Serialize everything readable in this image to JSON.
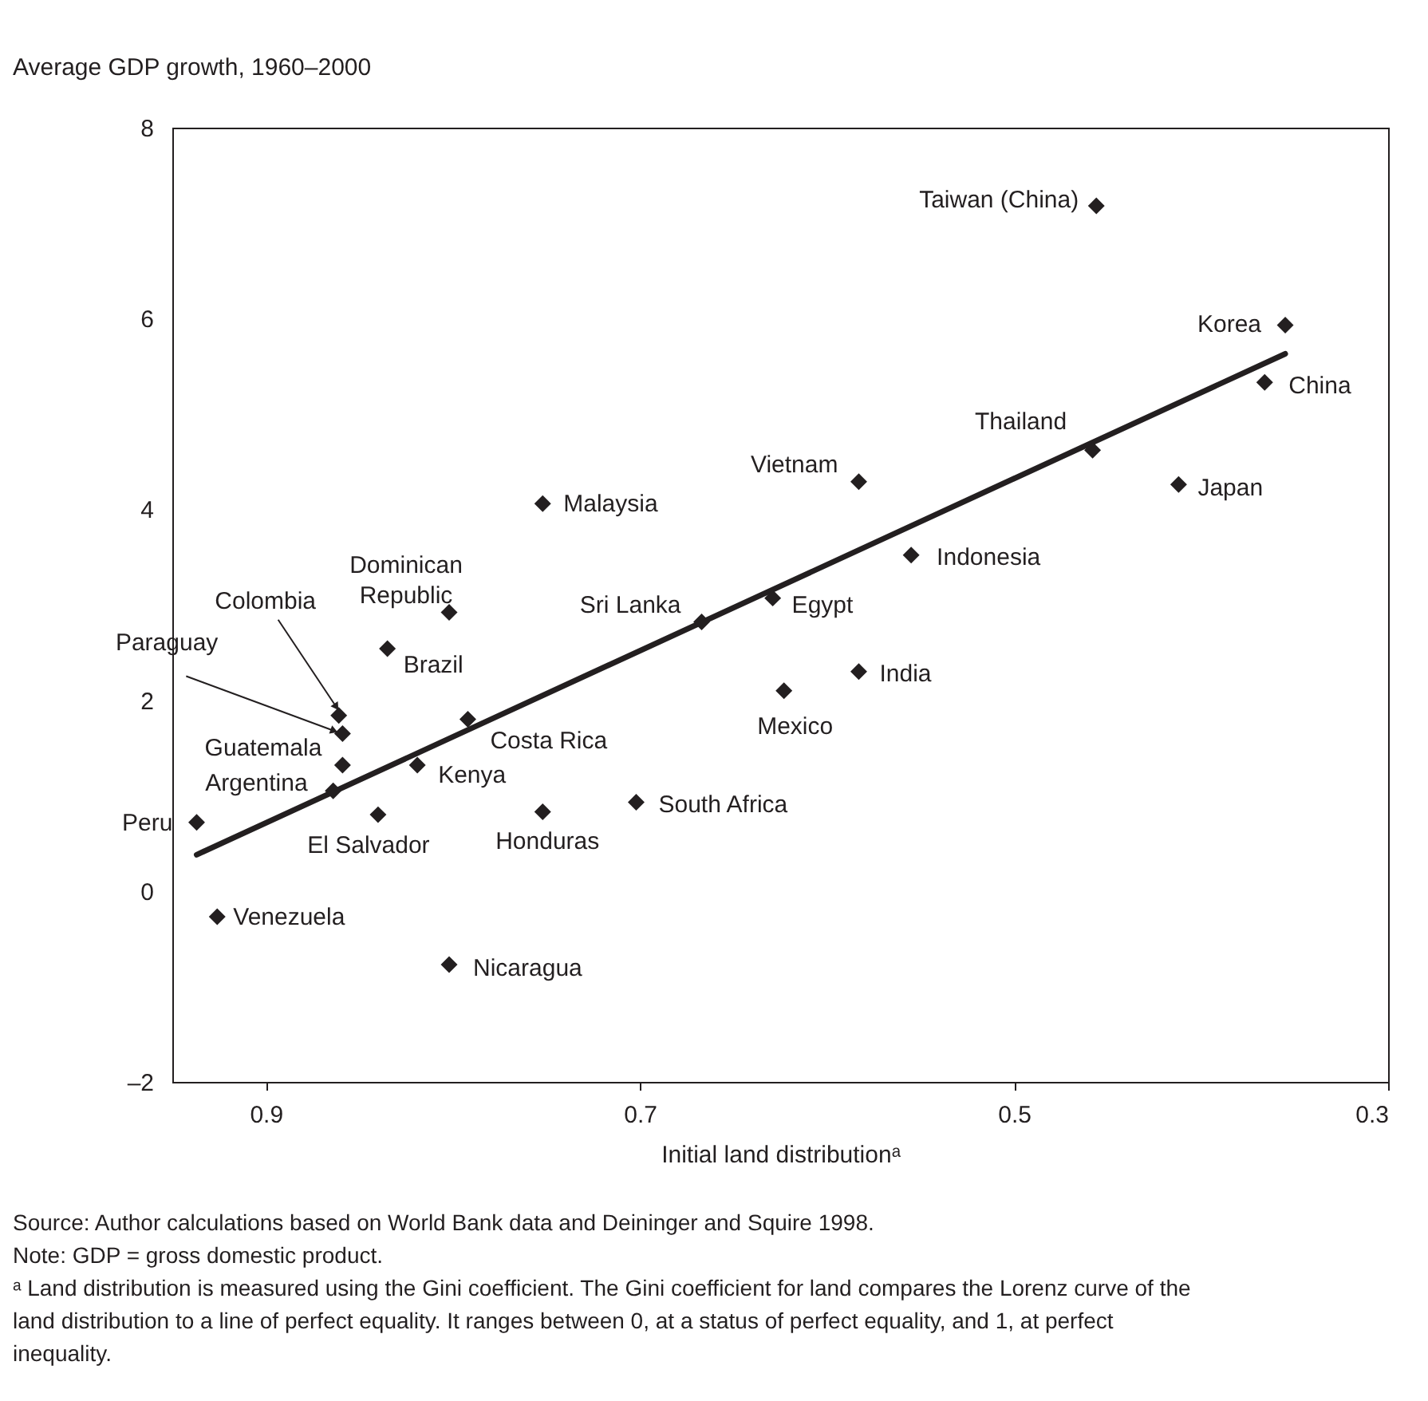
{
  "chart_data": {
    "type": "scatter",
    "ylabel": "Average GDP growth, 1960–2000",
    "xlabel": "Initial land distributionᵃ",
    "xlim": [
      0.95,
      0.3
    ],
    "xticks": [
      0.9,
      0.7,
      0.5,
      0.3
    ],
    "ylim": [
      -2,
      8
    ],
    "yticks": [
      {
        "value": -2,
        "label": "–2"
      },
      0,
      2,
      4,
      6,
      8
    ],
    "grid": false,
    "series": [
      {
        "color": "#231f20",
        "marker": "diamond",
        "x": [
          0.937,
          0.926,
          0.864,
          0.859,
          0.859,
          0.861,
          0.84,
          0.835,
          0.802,
          0.819,
          0.792,
          0.752,
          0.802,
          0.752,
          0.702,
          0.667,
          0.629,
          0.623,
          0.583,
          0.583,
          0.555,
          0.458,
          0.456,
          0.412,
          0.366,
          0.355
        ],
        "values": [
          0.72,
          -0.27,
          1.05,
          1.32,
          1.65,
          1.84,
          0.8,
          2.54,
          2.92,
          1.32,
          1.8,
          0.83,
          -0.77,
          4.06,
          0.93,
          2.82,
          3.07,
          2.1,
          2.3,
          4.29,
          3.52,
          4.62,
          7.18,
          4.26,
          5.33,
          5.93
        ]
      },
      {
        "type": "line",
        "color": "#231f20",
        "x": [
          0.937,
          0.355
        ],
        "values": [
          0.38,
          5.63
        ]
      }
    ],
    "annotations": [
      {
        "text": "Peru",
        "x": 0.937,
        "y": 0.72
      },
      {
        "text": "Venezuela",
        "x": 0.926,
        "y": -0.27
      },
      {
        "text": "Argentina",
        "x": 0.864,
        "y": 1.05
      },
      {
        "text": "Guatemala",
        "x": 0.859,
        "y": 1.32
      },
      {
        "text": "Paraguay",
        "x": 0.859,
        "y": 1.65
      },
      {
        "text": "Colombia",
        "x": 0.861,
        "y": 1.84
      },
      {
        "text": "El Salvador",
        "x": 0.84,
        "y": 0.8
      },
      {
        "text": "Brazil",
        "x": 0.835,
        "y": 2.54
      },
      {
        "text": "Dominican\nRepublic",
        "x": 0.802,
        "y": 2.92
      },
      {
        "text": "Kenya",
        "x": 0.819,
        "y": 1.32
      },
      {
        "text": "Costa Rica",
        "x": 0.792,
        "y": 1.8
      },
      {
        "text": "Honduras",
        "x": 0.752,
        "y": 0.83
      },
      {
        "text": "Nicaragua",
        "x": 0.802,
        "y": -0.77
      },
      {
        "text": "Malaysia",
        "x": 0.752,
        "y": 4.06
      },
      {
        "text": "South Africa",
        "x": 0.702,
        "y": 0.93
      },
      {
        "text": "Sri Lanka",
        "x": 0.667,
        "y": 2.82
      },
      {
        "text": "Egypt",
        "x": 0.629,
        "y": 3.07
      },
      {
        "text": "Mexico",
        "x": 0.623,
        "y": 2.1
      },
      {
        "text": "India",
        "x": 0.583,
        "y": 2.3
      },
      {
        "text": "Vietnam",
        "x": 0.583,
        "y": 4.29
      },
      {
        "text": "Indonesia",
        "x": 0.555,
        "y": 3.52
      },
      {
        "text": "Thailand",
        "x": 0.458,
        "y": 4.62
      },
      {
        "text": "Taiwan (China)",
        "x": 0.456,
        "y": 7.18
      },
      {
        "text": "Japan",
        "x": 0.412,
        "y": 4.26
      },
      {
        "text": "China",
        "x": 0.366,
        "y": 5.33
      },
      {
        "text": "Korea",
        "x": 0.355,
        "y": 5.93
      },
      "Source: Author calculations based on World Bank data and Deininger and Squire 1998.",
      "Note: GDP = gross domestic product.",
      "ᵃ Land distribution is measured using the Gini coefficient. The Gini coefficient for land compares the Lorenz curve of the land distribution to a line of perfect equality. It ranges between 0, at a status of perfect equality, and 1, at perfect inequality."
    ]
  }
}
